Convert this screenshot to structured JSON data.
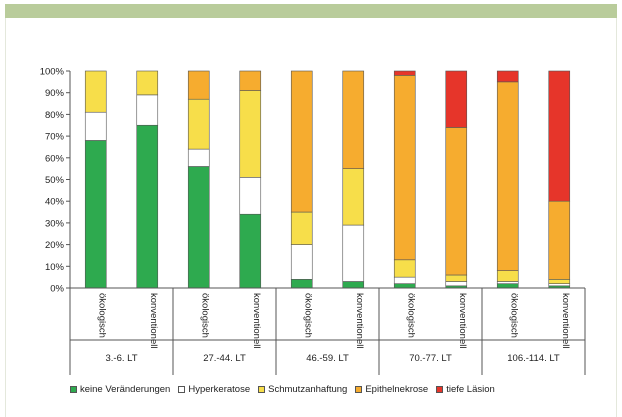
{
  "chart_data": {
    "type": "bar",
    "stacked": true,
    "categories": [
      "ökologisch",
      "konventionell",
      "ökologisch",
      "konventionell",
      "ökologisch",
      "konventionell",
      "ökologisch",
      "konventionell",
      "ökologisch",
      "konventionell"
    ],
    "groups": [
      "3.-6. LT",
      "27.-44. LT",
      "46.-59. LT",
      "70.-77. LT",
      "106.-114. LT"
    ],
    "series": [
      {
        "name": "keine Veränderungen",
        "color": "#2eaa4f",
        "values": [
          68,
          75,
          56,
          34,
          4,
          3,
          2,
          1,
          2,
          1
        ]
      },
      {
        "name": "Hyperkeratose",
        "color": "#ffffff",
        "values": [
          13,
          14,
          8,
          17,
          16,
          26,
          3,
          2,
          1,
          1
        ]
      },
      {
        "name": "Schmutzanhaftung",
        "color": "#f7de4a",
        "values": [
          19,
          11,
          23,
          40,
          15,
          26,
          8,
          3,
          5,
          2
        ]
      },
      {
        "name": "Epithelnekrose",
        "color": "#f6ac2f",
        "values": [
          0,
          0,
          13,
          9,
          65,
          45,
          85,
          68,
          87,
          36
        ]
      },
      {
        "name": "tiefe Läsion",
        "color": "#e6352a",
        "values": [
          0,
          0,
          0,
          0,
          0,
          0,
          2,
          26,
          5,
          60
        ]
      }
    ],
    "yticks": [
      "0%",
      "10%",
      "20%",
      "30%",
      "40%",
      "50%",
      "60%",
      "70%",
      "80%",
      "90%",
      "100%"
    ],
    "ylim": [
      0,
      100
    ],
    "title": "",
    "xlabel": "",
    "ylabel": "",
    "grid": false,
    "legend": "bottom"
  }
}
